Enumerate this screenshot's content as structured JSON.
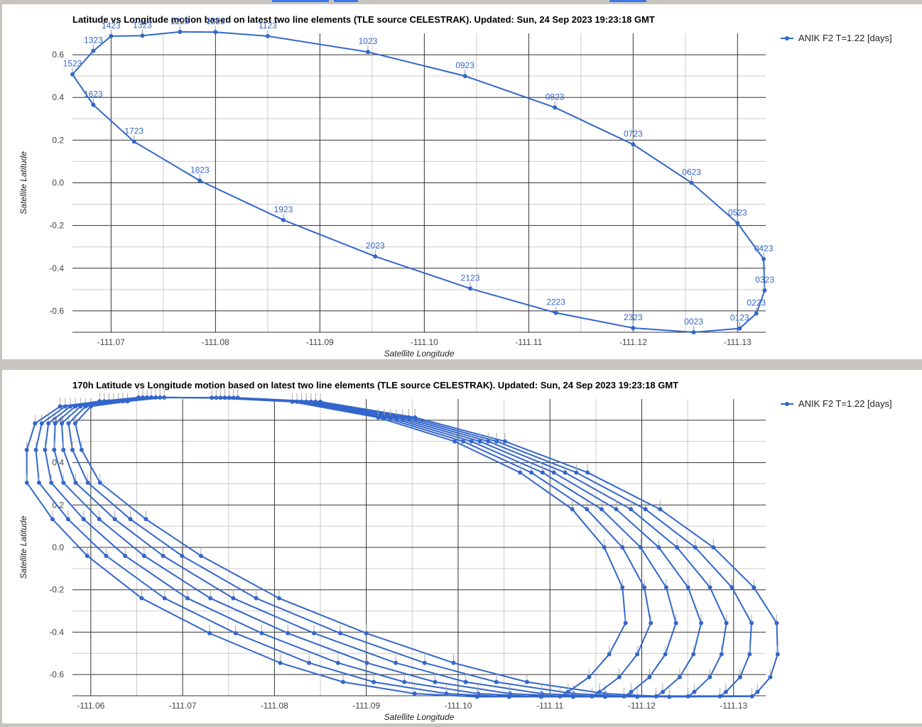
{
  "colors": {
    "series": "#3366cc",
    "grid": "#333333",
    "minor_grid": "#cccccc",
    "label": "#3366cc"
  },
  "chart_data": [
    {
      "type": "line",
      "title": "Latitude vs Longitude motion based on latest two line elements (TLE source CELESTRAK). Updated: Sun, 24 Sep 2023 19:23:18 GMT",
      "xlabel": "Satellite Longitude",
      "ylabel": "Satellite Latitude",
      "xlim": [
        -111.0663,
        -111.1327
      ],
      "ylim": [
        -0.7,
        0.7
      ],
      "xticks": [
        -111.07,
        -111.08,
        -111.09,
        -111.1,
        -111.11,
        -111.12,
        -111.13
      ],
      "xtick_labels": [
        "-111.07",
        "-111.08",
        "-111.09",
        "-111.10",
        "-111.11",
        "-111.12",
        "-111.13"
      ],
      "yticks": [
        0.6,
        0.4,
        0.2,
        0.0,
        -0.2,
        -0.4,
        -0.6
      ],
      "ytick_labels": [
        "0.6",
        "0.4",
        "0.2",
        "0.0",
        "-0.2",
        "-0.4",
        "-0.6"
      ],
      "grid": true,
      "legend": "right",
      "series": [
        {
          "name": "ANIK F2 T=1.22 [days]",
          "points": [
            {
              "x": -111.1258,
              "y": -0.7,
              "label": "0023"
            },
            {
              "x": -111.1302,
              "y": -0.682,
              "label": "0123"
            },
            {
              "x": -111.1318,
              "y": -0.612,
              "label": "0223"
            },
            {
              "x": -111.1326,
              "y": -0.504,
              "label": "0323"
            },
            {
              "x": -111.1325,
              "y": -0.357,
              "label": "0423"
            },
            {
              "x": -111.13,
              "y": -0.189,
              "label": "0523"
            },
            {
              "x": -111.1256,
              "y": 0.0,
              "label": "0623"
            },
            {
              "x": -111.12,
              "y": 0.18,
              "label": "0723"
            },
            {
              "x": -111.1125,
              "y": 0.353,
              "label": "0823"
            },
            {
              "x": -111.1039,
              "y": 0.5,
              "label": "0923"
            },
            {
              "x": -111.0946,
              "y": 0.613,
              "label": "1023"
            },
            {
              "x": -111.085,
              "y": 0.687,
              "label": "1123"
            },
            {
              "x": -111.08,
              "y": 0.706,
              "label": "1223"
            },
            {
              "x": -111.0766,
              "y": 0.707,
              "label": "1223"
            },
            {
              "x": -111.073,
              "y": 0.689,
              "label": "1323"
            },
            {
              "x": -111.07,
              "y": 0.687,
              "label": "1423"
            },
            {
              "x": -111.0683,
              "y": 0.618,
              "label": "1323"
            },
            {
              "x": -111.0663,
              "y": 0.508,
              "label": "1523"
            },
            {
              "x": -111.0683,
              "y": 0.365,
              "label": "1623"
            },
            {
              "x": -111.0722,
              "y": 0.193,
              "label": "1723"
            },
            {
              "x": -111.0785,
              "y": 0.01,
              "label": "1823"
            },
            {
              "x": -111.0865,
              "y": -0.174,
              "label": "1923"
            },
            {
              "x": -111.0953,
              "y": -0.345,
              "label": "2023"
            },
            {
              "x": -111.1044,
              "y": -0.495,
              "label": "2123"
            },
            {
              "x": -111.1126,
              "y": -0.609,
              "label": "2223"
            },
            {
              "x": -111.12,
              "y": -0.68,
              "label": "2323"
            },
            {
              "x": -111.1258,
              "y": -0.7,
              "label": "0023"
            }
          ]
        }
      ]
    },
    {
      "type": "line",
      "title": "170h Latitude vs Longitude motion based on latest two line elements (TLE source CELESTRAK). Updated: Sun, 24 Sep 2023 19:23:18 GMT",
      "xlabel": "Satellite Longitude",
      "ylabel": "Satellite Latitude",
      "xlim": [
        -111.058,
        -111.1335
      ],
      "ylim": [
        -0.7,
        0.7
      ],
      "xticks": [
        -111.06,
        -111.07,
        -111.08,
        -111.09,
        -111.1,
        -111.11,
        -111.12,
        -111.13
      ],
      "xtick_labels": [
        "-111.06",
        "-111.07",
        "-111.08",
        "-111.09",
        "-111.10",
        "-111.11",
        "-111.12",
        "-111.13"
      ],
      "yticks": [
        0.6,
        0.4,
        0.2,
        0.0,
        -0.2,
        -0.4,
        -0.6
      ],
      "ytick_labels": [
        "0.6",
        "0.4",
        "0.2",
        "0.0",
        "-0.2",
        "-0.4",
        "-0.6"
      ],
      "grid": true,
      "legend": "right",
      "series": [
        {
          "name": "ANIK F2 T=1.22 [days]",
          "loops": 7,
          "drift_per_loop": 0.0022,
          "base_orbit": [
            {
              "x": -111.132,
              "y": -0.703
            },
            {
              "x": -111.1326,
              "y": -0.682
            },
            {
              "x": -111.134,
              "y": -0.612
            },
            {
              "x": -111.1348,
              "y": -0.504
            },
            {
              "x": -111.1347,
              "y": -0.357
            },
            {
              "x": -111.1322,
              "y": -0.189
            },
            {
              "x": -111.1278,
              "y": 0.0
            },
            {
              "x": -111.122,
              "y": 0.18
            },
            {
              "x": -111.1141,
              "y": 0.353
            },
            {
              "x": -111.1051,
              "y": 0.5
            },
            {
              "x": -111.0953,
              "y": 0.613
            },
            {
              "x": -111.085,
              "y": 0.687
            },
            {
              "x": -111.076,
              "y": 0.706
            },
            {
              "x": -111.068,
              "y": 0.707
            },
            {
              "x": -111.064,
              "y": 0.689
            },
            {
              "x": -111.06,
              "y": 0.665
            },
            {
              "x": -111.0583,
              "y": 0.585
            },
            {
              "x": -111.059,
              "y": 0.46
            },
            {
              "x": -111.061,
              "y": 0.305
            },
            {
              "x": -111.066,
              "y": 0.133
            },
            {
              "x": -111.072,
              "y": -0.04
            },
            {
              "x": -111.0805,
              "y": -0.24
            },
            {
              "x": -111.09,
              "y": -0.405
            },
            {
              "x": -111.0995,
              "y": -0.545
            },
            {
              "x": -111.1075,
              "y": -0.635
            },
            {
              "x": -111.116,
              "y": -0.69
            },
            {
              "x": -111.123,
              "y": -0.705
            },
            {
              "x": -111.132,
              "y": -0.703
            }
          ]
        }
      ]
    }
  ]
}
